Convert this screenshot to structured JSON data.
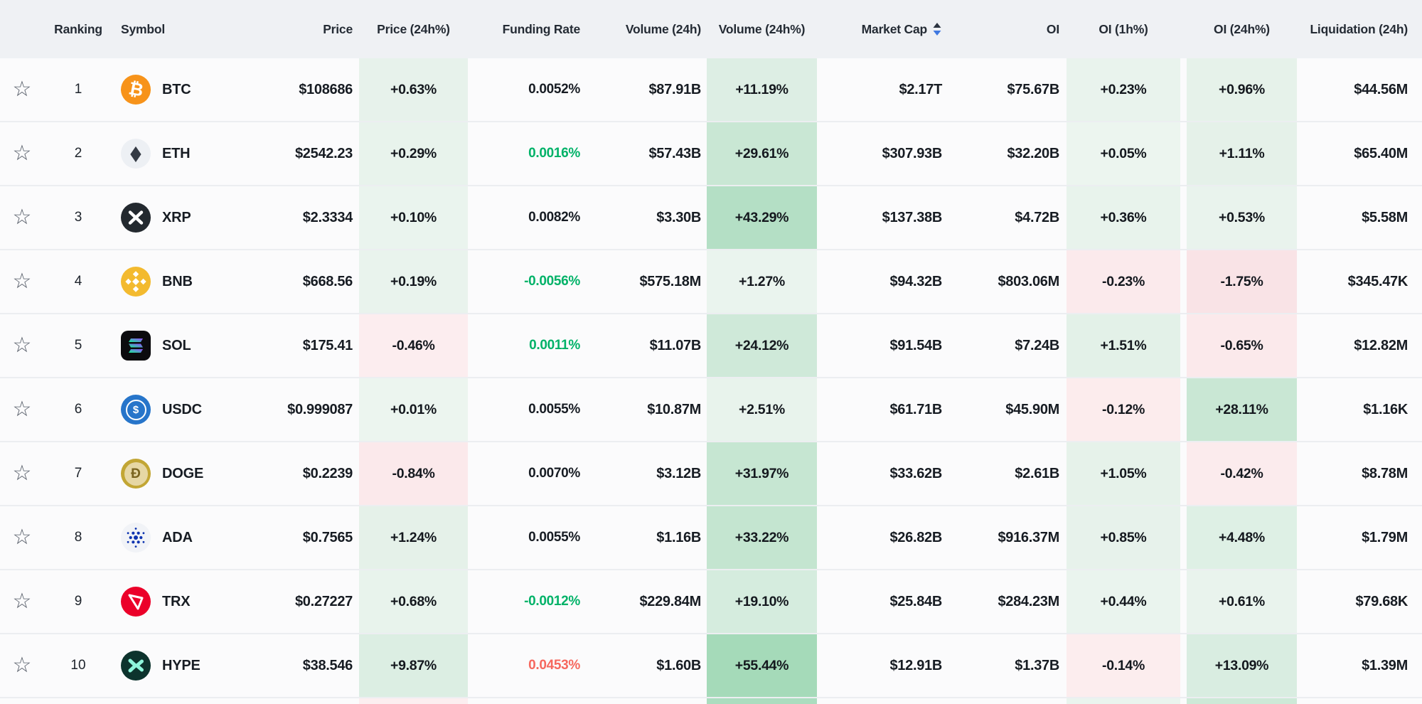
{
  "colors": {
    "positive_text": "#00b268",
    "negative_text": "#f6685e",
    "neutral_text": "#171c23",
    "header_bg": "#eff1f4",
    "row_bg": "#fbfbfc",
    "separator": "#eceef1",
    "sort_up": "#2c3440",
    "sort_down": "#3f78e0",
    "star": "#565d68"
  },
  "glyphs": {
    "star": "☆"
  },
  "coin_icons": {
    "btc": {
      "bg": "#f7931a",
      "fg": "#ffffff",
      "glyph": "₿"
    },
    "eth": {
      "bg": "#edf0f4",
      "fg": "#353b45",
      "glyph": "◆"
    },
    "xrp": {
      "bg": "#23292f",
      "fg": "#ffffff"
    },
    "bnb": {
      "bg": "#f3ba2f",
      "fg": "#ffffff"
    },
    "sol": {
      "bg": "#0b0b0e",
      "fg": "#9945ff",
      "fg2": "#14f195"
    },
    "usdc": {
      "bg": "#2775ca",
      "fg": "#ffffff",
      "glyph": "$"
    },
    "doge": {
      "bg": "#c2a634",
      "fg": "#7a6420",
      "inner": "#e6d7a4",
      "glyph": "Ð"
    },
    "ada": {
      "bg": "#f1f3f7",
      "fg": "#0d33b0"
    },
    "trx": {
      "bg": "#eb0029",
      "fg": "#ffffff"
    },
    "hype": {
      "bg": "#0d332d",
      "fg": "#8ef5db"
    }
  },
  "table": {
    "columns": [
      {
        "key": "star",
        "label": ""
      },
      {
        "key": "rank",
        "label": "Ranking"
      },
      {
        "key": "symbol",
        "label": "Symbol"
      },
      {
        "key": "price",
        "label": "Price"
      },
      {
        "key": "price_24h_pct",
        "label": "Price (24h%)"
      },
      {
        "key": "funding_rate",
        "label": "Funding Rate"
      },
      {
        "key": "volume_24h",
        "label": "Volume (24h)"
      },
      {
        "key": "volume_24h_pct",
        "label": "Volume (24h%)"
      },
      {
        "key": "market_cap",
        "label": "Market Cap",
        "sortable": true,
        "sort_direction": "desc"
      },
      {
        "key": "oi",
        "label": "OI"
      },
      {
        "key": "oi_1h_pct",
        "label": "OI (1h%)"
      },
      {
        "key": "oi_24h_pct",
        "label": "OI (24h%)"
      },
      {
        "key": "liquidation_24h",
        "label": "Liquidation (24h)"
      }
    ],
    "rows": [
      {
        "rank": "1",
        "symbol": "BTC",
        "icon": "btc",
        "price": "$108686",
        "price_24h_pct": {
          "text": "+0.63%",
          "bg": "#e7f2eb"
        },
        "funding_rate": {
          "text": "0.0052%",
          "color": "#171c23"
        },
        "volume_24h": "$87.91B",
        "volume_24h_pct": {
          "text": "+11.19%",
          "bg": "#ddeee4"
        },
        "market_cap": "$2.17T",
        "oi": "$75.67B",
        "oi_1h_pct": {
          "text": "+0.23%",
          "bg": "#e9f3ed"
        },
        "oi_24h_pct": {
          "text": "+0.96%",
          "bg": "#e6f2ea"
        },
        "liquidation_24h": "$44.56M"
      },
      {
        "rank": "2",
        "symbol": "ETH",
        "icon": "eth",
        "price": "$2542.23",
        "price_24h_pct": {
          "text": "+0.29%",
          "bg": "#e8f3ec"
        },
        "funding_rate": {
          "text": "0.0016%",
          "color": "#00b268"
        },
        "volume_24h": "$57.43B",
        "volume_24h_pct": {
          "text": "+29.61%",
          "bg": "#c9e7d4"
        },
        "market_cap": "$307.93B",
        "oi": "$32.20B",
        "oi_1h_pct": {
          "text": "+0.05%",
          "bg": "#ecf5ef"
        },
        "oi_24h_pct": {
          "text": "+1.11%",
          "bg": "#e5f1e9"
        },
        "liquidation_24h": "$65.40M"
      },
      {
        "rank": "3",
        "symbol": "XRP",
        "icon": "xrp",
        "price": "$2.3334",
        "price_24h_pct": {
          "text": "+0.10%",
          "bg": "#eaf4ee"
        },
        "funding_rate": {
          "text": "0.0082%",
          "color": "#171c23"
        },
        "volume_24h": "$3.30B",
        "volume_24h_pct": {
          "text": "+43.29%",
          "bg": "#b4dfc5"
        },
        "market_cap": "$137.38B",
        "oi": "$4.72B",
        "oi_1h_pct": {
          "text": "+0.36%",
          "bg": "#e8f3ec"
        },
        "oi_24h_pct": {
          "text": "+0.53%",
          "bg": "#e9f3ed"
        },
        "liquidation_24h": "$5.58M"
      },
      {
        "rank": "4",
        "symbol": "BNB",
        "icon": "bnb",
        "price": "$668.56",
        "price_24h_pct": {
          "text": "+0.19%",
          "bg": "#e9f3ed"
        },
        "funding_rate": {
          "text": "-0.0056%",
          "color": "#00b268"
        },
        "volume_24h": "$575.18M",
        "volume_24h_pct": {
          "text": "+1.27%",
          "bg": "#eaf4ee"
        },
        "market_cap": "$94.32B",
        "oi": "$803.06M",
        "oi_1h_pct": {
          "text": "-0.23%",
          "bg": "#fbeaec"
        },
        "oi_24h_pct": {
          "text": "-1.75%",
          "bg": "#f9e3e6"
        },
        "liquidation_24h": "$345.47K"
      },
      {
        "rank": "5",
        "symbol": "SOL",
        "icon": "sol",
        "price": "$175.41",
        "price_24h_pct": {
          "text": "-0.46%",
          "bg": "#fcedef"
        },
        "funding_rate": {
          "text": "0.0011%",
          "color": "#00b268"
        },
        "volume_24h": "$11.07B",
        "volume_24h_pct": {
          "text": "+24.12%",
          "bg": "#cfe9d9"
        },
        "market_cap": "$91.54B",
        "oi": "$7.24B",
        "oi_1h_pct": {
          "text": "+1.51%",
          "bg": "#e3f1e8"
        },
        "oi_24h_pct": {
          "text": "-0.65%",
          "bg": "#fbe9eb"
        },
        "liquidation_24h": "$12.82M"
      },
      {
        "rank": "6",
        "symbol": "USDC",
        "icon": "usdc",
        "price": "$0.999087",
        "price_24h_pct": {
          "text": "+0.01%",
          "bg": "#ecf5ef"
        },
        "funding_rate": {
          "text": "0.0055%",
          "color": "#171c23"
        },
        "volume_24h": "$10.87M",
        "volume_24h_pct": {
          "text": "+2.51%",
          "bg": "#e8f3ec"
        },
        "market_cap": "$61.71B",
        "oi": "$45.90M",
        "oi_1h_pct": {
          "text": "-0.12%",
          "bg": "#fceced"
        },
        "oi_24h_pct": {
          "text": "+28.11%",
          "bg": "#c9e7d4"
        },
        "liquidation_24h": "$1.16K"
      },
      {
        "rank": "7",
        "symbol": "DOGE",
        "icon": "doge",
        "price": "$0.2239",
        "price_24h_pct": {
          "text": "-0.84%",
          "bg": "#fbe9eb"
        },
        "funding_rate": {
          "text": "0.0070%",
          "color": "#171c23"
        },
        "volume_24h": "$3.12B",
        "volume_24h_pct": {
          "text": "+31.97%",
          "bg": "#c6e6d2"
        },
        "market_cap": "$33.62B",
        "oi": "$2.61B",
        "oi_1h_pct": {
          "text": "+1.05%",
          "bg": "#e6f2ea"
        },
        "oi_24h_pct": {
          "text": "-0.42%",
          "bg": "#fbebed"
        },
        "liquidation_24h": "$8.78M"
      },
      {
        "rank": "8",
        "symbol": "ADA",
        "icon": "ada",
        "price": "$0.7565",
        "price_24h_pct": {
          "text": "+1.24%",
          "bg": "#e5f1e9"
        },
        "funding_rate": {
          "text": "0.0055%",
          "color": "#171c23"
        },
        "volume_24h": "$1.16B",
        "volume_24h_pct": {
          "text": "+33.22%",
          "bg": "#c4e5d0"
        },
        "market_cap": "$26.82B",
        "oi": "$916.37M",
        "oi_1h_pct": {
          "text": "+0.85%",
          "bg": "#e7f2eb"
        },
        "oi_24h_pct": {
          "text": "+4.48%",
          "bg": "#def0e5"
        },
        "liquidation_24h": "$1.79M"
      },
      {
        "rank": "9",
        "symbol": "TRX",
        "icon": "trx",
        "price": "$0.27227",
        "price_24h_pct": {
          "text": "+0.68%",
          "bg": "#e8f3ec"
        },
        "funding_rate": {
          "text": "-0.0012%",
          "color": "#00b268"
        },
        "volume_24h": "$229.84M",
        "volume_24h_pct": {
          "text": "+19.10%",
          "bg": "#d5ecde"
        },
        "market_cap": "$25.84B",
        "oi": "$284.23M",
        "oi_1h_pct": {
          "text": "+0.44%",
          "bg": "#eaf4ee"
        },
        "oi_24h_pct": {
          "text": "+0.61%",
          "bg": "#e9f3ed"
        },
        "liquidation_24h": "$79.68K"
      },
      {
        "rank": "10",
        "symbol": "HYPE",
        "icon": "hype",
        "price": "$38.546",
        "price_24h_pct": {
          "text": "+9.87%",
          "bg": "#dceee3"
        },
        "funding_rate": {
          "text": "0.0453%",
          "color": "#f6685e"
        },
        "volume_24h": "$1.60B",
        "volume_24h_pct": {
          "text": "+55.44%",
          "bg": "#a5dab9"
        },
        "market_cap": "$12.91B",
        "oi": "$1.37B",
        "oi_1h_pct": {
          "text": "-0.14%",
          "bg": "#fcedee"
        },
        "oi_24h_pct": {
          "text": "+13.09%",
          "bg": "#d9ede1"
        },
        "liquidation_24h": "$1.39M"
      }
    ],
    "bottom_partial_row": {
      "price_24h_pct_bg": "#fceef0",
      "volume_24h_pct_bg": "#abddbf",
      "oi_1h_pct_bg": "#eaf4ee",
      "oi_24h_pct_bg": "#cde9d7"
    }
  }
}
